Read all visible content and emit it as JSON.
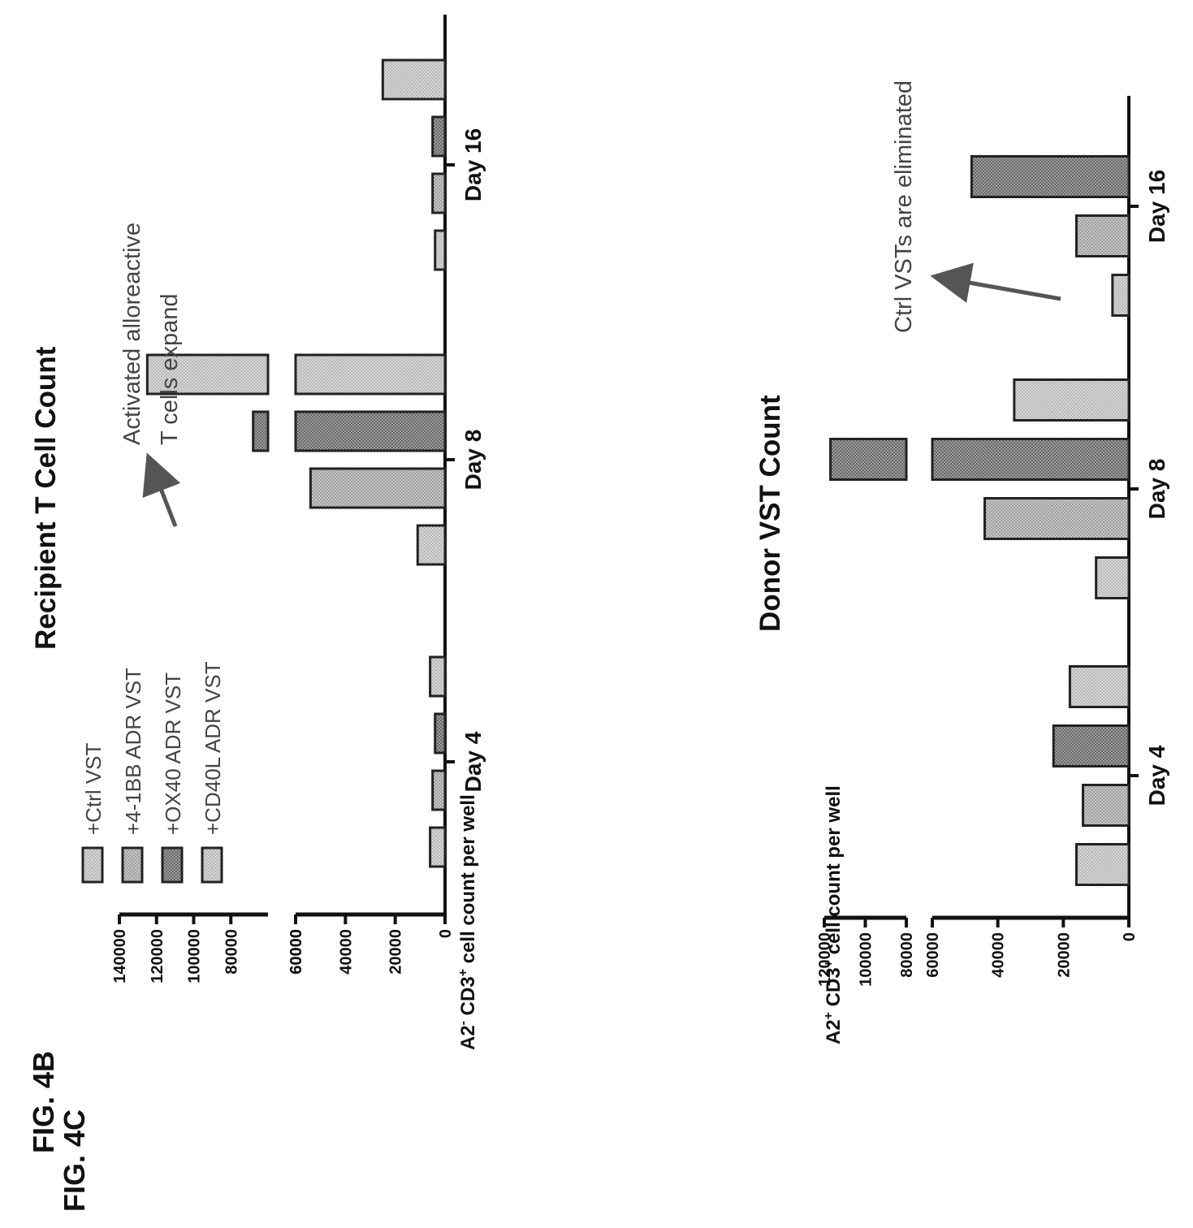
{
  "fig4b": {
    "fig_label": "FIG. 4B",
    "ylabel_main": "A2",
    "ylabel_sup1": "-",
    "ylabel_mid": " CD3",
    "ylabel_sup2": "+",
    "ylabel_tail": " cell count per well",
    "annotation_line1": "Activated alloreactive",
    "annotation_line2": "T cells expand"
  },
  "fig4c": {
    "fig_label": "FIG. 4C",
    "ylabel_main": "A2",
    "ylabel_sup1": "+",
    "ylabel_mid": " CD3",
    "ylabel_sup2": "+",
    "ylabel_tail": " cell count per well",
    "annotation": "Ctrl VSTs are eliminated"
  },
  "colors": {
    "bar_fill": "#bdbdbd",
    "bar_stroke": "#222222",
    "axis": "#111111",
    "arrow": "#555555"
  },
  "chart_data": [
    {
      "type": "bar",
      "title": "Recipient T Cell Count",
      "xlabel": "",
      "ylabel": "A2- CD3+ cell count per well",
      "orientation": "rotated 90° counter-clockwise",
      "axis_break": [
        60000,
        60000
      ],
      "ylim": [
        0,
        140000
      ],
      "categories": [
        "Day 4",
        "Day 8",
        "Day 16"
      ],
      "yticks_lower": [
        0,
        20000,
        40000,
        60000
      ],
      "yticks_upper": [
        60000,
        80000,
        100000,
        120000,
        140000
      ],
      "legend": [
        "+Ctrl VST",
        "+4-1BB ADR VST",
        "+OX40 ADR VST",
        "+CD40L ADR VST"
      ],
      "legend_position": "top-left",
      "series": [
        {
          "name": "+Ctrl VST",
          "values": [
            6000,
            11000,
            4000
          ]
        },
        {
          "name": "+4-1BB ADR VST",
          "values": [
            5000,
            54000,
            5000
          ]
        },
        {
          "name": "+OX40 ADR VST",
          "values": [
            4000,
            68000,
            5000
          ]
        },
        {
          "name": "+CD40L ADR VST",
          "values": [
            6000,
            125000,
            25000
          ]
        }
      ]
    },
    {
      "type": "bar",
      "title": "Donor VST Count",
      "xlabel": "",
      "ylabel": "A2+ CD3+ cell count per well",
      "orientation": "rotated 90° counter-clockwise",
      "axis_break": [
        60000,
        80000
      ],
      "ylim": [
        0,
        120000
      ],
      "categories": [
        "Day 4",
        "Day 8",
        "Day 16"
      ],
      "yticks_lower": [
        0,
        20000,
        40000,
        60000
      ],
      "yticks_upper": [
        80000,
        100000,
        120000
      ],
      "series": [
        {
          "name": "+Ctrl VST",
          "values": [
            16000,
            10000,
            5000
          ]
        },
        {
          "name": "+4-1BB ADR VST",
          "values": [
            14000,
            44000,
            16000
          ]
        },
        {
          "name": "+OX40 ADR VST",
          "values": [
            23000,
            117000,
            48000
          ]
        },
        {
          "name": "+CD40L ADR VST",
          "values": [
            18000,
            35000,
            0
          ]
        }
      ]
    }
  ]
}
